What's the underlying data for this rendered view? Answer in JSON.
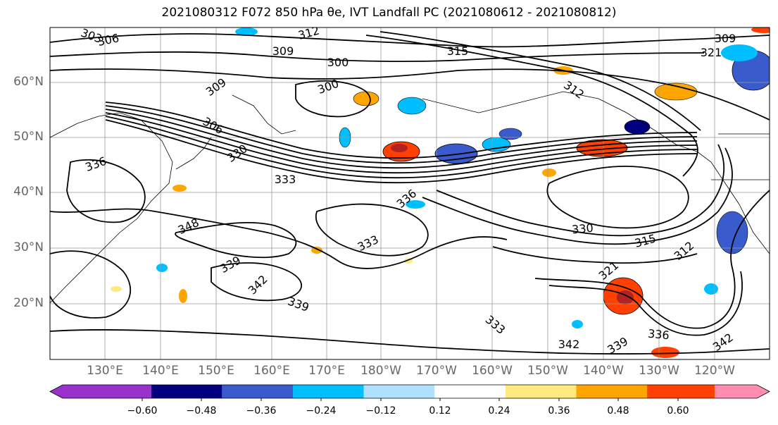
{
  "title": "2021080312 F072 850 hPa θe, IVT Landfall PC (2021080612 - 2021080812)",
  "map": {
    "lat_labels": [
      "60°N",
      "50°N",
      "40°N",
      "30°N",
      "20°N"
    ],
    "lon_labels": [
      "130°E",
      "140°E",
      "150°E",
      "160°E",
      "170°E",
      "180°W",
      "170°W",
      "160°W",
      "150°W",
      "140°W",
      "130°W",
      "120°W"
    ],
    "contour_labels": [
      "303",
      "306",
      "312",
      "309",
      "315",
      "300",
      "312",
      "321",
      "309",
      "300",
      "309",
      "306",
      "330",
      "336",
      "333",
      "336",
      "348",
      "339",
      "333",
      "342",
      "339",
      "330",
      "315",
      "312",
      "321",
      "336",
      "342",
      "342",
      "339",
      "333"
    ],
    "gridlines": true
  },
  "colorbar": {
    "colors": [
      "#9932cc",
      "#000080",
      "#3a5bcc",
      "#00bfff",
      "#b0e2ff",
      "#ffffff",
      "#ffea80",
      "#ffa500",
      "#ff4000",
      "#b22222",
      "#ff8db0"
    ],
    "ticks": [
      "−0.60",
      "−0.48",
      "−0.36",
      "−0.24",
      "−0.12",
      "0.12",
      "0.24",
      "0.36",
      "0.48",
      "0.60"
    ],
    "extend": "both"
  }
}
